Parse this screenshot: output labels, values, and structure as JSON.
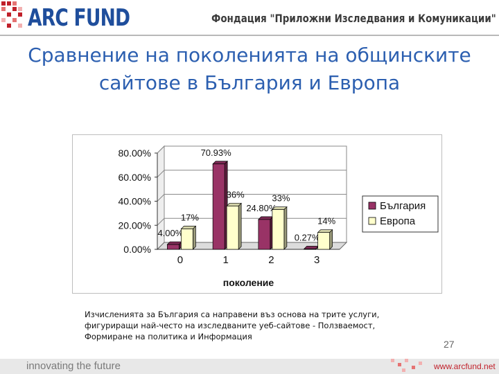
{
  "header": {
    "logo_text": "ARC FUND",
    "org_name": "Фондация \"Приложни Изследвания и Комуникации\""
  },
  "slide": {
    "title": "Сравнение на поколенията на общинските сайтове в България и Европа",
    "note": "Изчисленията за България са направени въз основа на трите услуги, фигуриращи най-често на изследваните уеб-сайтове - Ползваемост, Формиране на политика и Информация",
    "page_number": "27"
  },
  "footer": {
    "tagline": "innovating the future",
    "website": "www.arcfund.net"
  },
  "colors": {
    "brand_blue": "#1f4e9c",
    "title_blue": "#2c5fb0",
    "brand_red": "#c0202a",
    "bulgaria": "#993366",
    "europe": "#ffffcc"
  },
  "chart_data": {
    "type": "bar",
    "categories": [
      "0",
      "1",
      "2",
      "3"
    ],
    "series": [
      {
        "name": "България",
        "values": [
          4.0,
          70.93,
          24.8,
          0.27
        ],
        "labels": [
          "4.00%",
          "70.93%",
          "24.80%",
          "0.27%"
        ]
      },
      {
        "name": "Европа",
        "values": [
          17,
          36,
          33,
          14
        ],
        "labels": [
          "17%",
          "36%",
          "33%",
          "14%"
        ]
      }
    ],
    "xlabel": "поколение",
    "ylabel": "",
    "ylim": [
      0,
      80
    ],
    "yticks": [
      "0.00%",
      "20.00%",
      "40.00%",
      "60.00%",
      "80.00%"
    ],
    "grid": true,
    "three_d": true,
    "legend_position": "right"
  }
}
